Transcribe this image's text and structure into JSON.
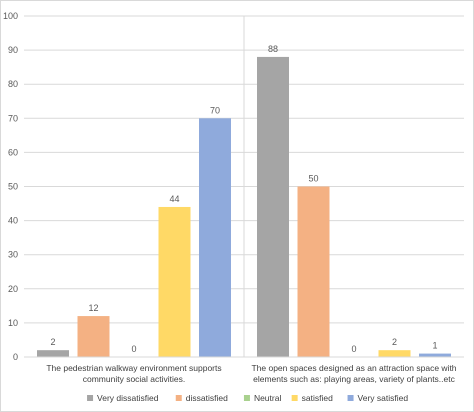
{
  "chart_data": {
    "type": "bar",
    "title": "",
    "xlabel": "",
    "ylabel": "",
    "ylim": [
      0,
      100
    ],
    "yticks": [
      0,
      10,
      20,
      30,
      40,
      50,
      60,
      70,
      80,
      90,
      100
    ],
    "grid": "horizontal",
    "legend_position": "bottom",
    "categories": [
      [
        "The pedestrian walkway environment supports",
        "community social activities."
      ],
      [
        "The open spaces designed as an attraction space with",
        "elements  such as: playing areas, variety of plants..etc"
      ]
    ],
    "series": [
      {
        "name": "Very dissatisfied",
        "color": "#a5a5a5",
        "values": [
          2,
          88
        ]
      },
      {
        "name": "dissatisfied",
        "color": "#f4b183",
        "values": [
          12,
          50
        ]
      },
      {
        "name": "Neutral",
        "color": "#a9d18e",
        "values": [
          0,
          0
        ]
      },
      {
        "name": "satisfied",
        "color": "#ffd966",
        "values": [
          44,
          2
        ]
      },
      {
        "name": "Very satisfied",
        "color": "#8faadc",
        "values": [
          70,
          1
        ]
      }
    ]
  }
}
